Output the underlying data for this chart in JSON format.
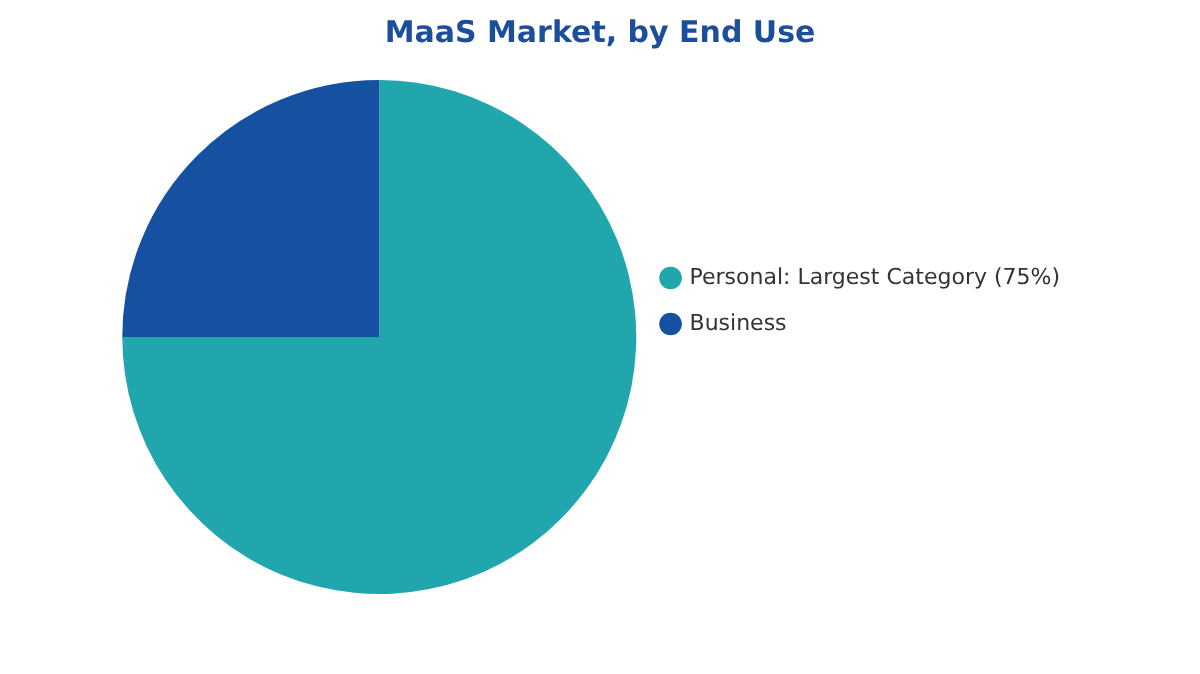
{
  "chart_data": {
    "type": "pie",
    "title": "MaaS Market, by End Use",
    "categories": [
      "Personal: Largest Category (75%)",
      "Business"
    ],
    "values": [
      75,
      25
    ],
    "colors": [
      "#21a6ad",
      "#1650a0"
    ],
    "legend": "right"
  }
}
